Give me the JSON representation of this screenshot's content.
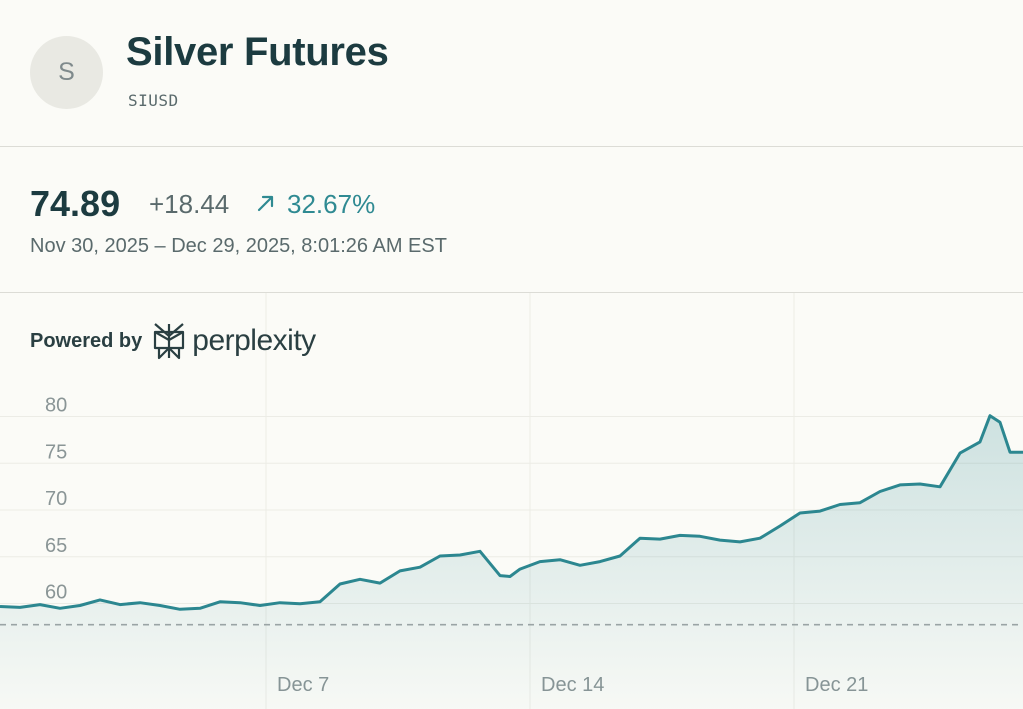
{
  "header": {
    "avatar_letter": "S",
    "title": "Silver Futures",
    "ticker": "SIUSD"
  },
  "quote": {
    "price": "74.89",
    "change": "+18.44",
    "change_pct": "32.67%",
    "direction_icon": "arrow-up-right-icon",
    "range": "Nov 30, 2025 – Dec 29, 2025, 8:01:26 AM EST"
  },
  "branding": {
    "powered_by": "Powered by",
    "brand": "perplexity",
    "logo_icon": "perplexity-logo-icon"
  },
  "colors": {
    "line": "#2c8790",
    "positive": "#2f8a92",
    "background": "#fbfbf7"
  },
  "chart_data": {
    "type": "area",
    "x_ticks": [
      "Dec 7",
      "Dec 14",
      "Dec 21"
    ],
    "y_ticks": [
      60,
      65,
      70,
      75,
      80
    ],
    "ylim": [
      56.5,
      81.5
    ],
    "baseline": 56.45,
    "grid": true,
    "x": [
      0,
      20,
      40,
      60,
      80,
      100,
      120,
      140,
      160,
      180,
      200,
      220,
      240,
      260,
      280,
      300,
      320,
      340,
      360,
      380,
      400,
      420,
      440,
      460,
      480,
      500,
      510,
      520,
      540,
      560,
      580,
      600,
      620,
      640,
      660,
      680,
      700,
      720,
      740,
      760,
      780,
      800,
      820,
      840,
      860,
      880,
      900,
      920,
      940,
      960,
      980,
      990,
      1000,
      1010,
      1023
    ],
    "values": [
      58.4,
      58.3,
      58.6,
      58.2,
      58.5,
      59.1,
      58.6,
      58.8,
      58.5,
      58.1,
      58.2,
      58.9,
      58.8,
      58.5,
      58.8,
      58.7,
      58.9,
      60.8,
      61.3,
      60.9,
      62.2,
      62.6,
      63.8,
      63.9,
      64.3,
      61.7,
      61.6,
      62.4,
      63.2,
      63.4,
      62.8,
      63.2,
      63.8,
      65.7,
      65.6,
      66.0,
      65.9,
      65.5,
      65.3,
      65.7,
      67.0,
      68.4,
      68.6,
      69.3,
      69.5,
      70.7,
      71.4,
      71.5,
      71.2,
      74.8,
      76.0,
      78.8,
      78.1,
      74.9,
      74.9
    ]
  }
}
